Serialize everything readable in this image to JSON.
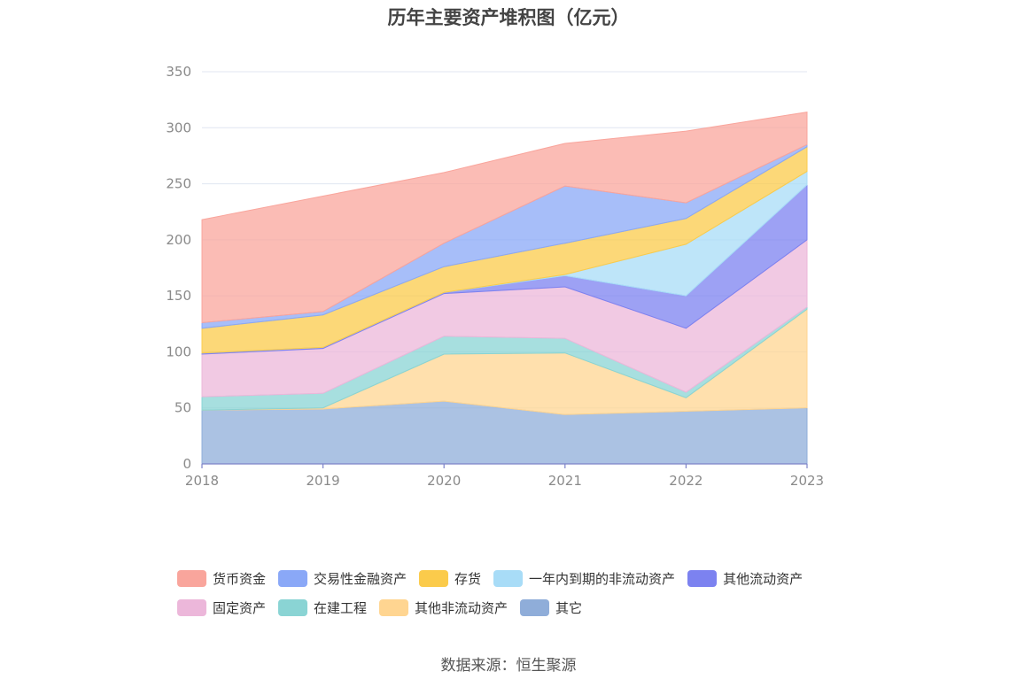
{
  "title": "历年主要资产堆积图（亿元）",
  "source": "数据来源：恒生聚源",
  "chart_data": {
    "type": "area",
    "stacked": true,
    "x": [
      "2018",
      "2019",
      "2020",
      "2021",
      "2022",
      "2023"
    ],
    "ylim": [
      0,
      350
    ],
    "yticks": [
      0,
      50,
      100,
      150,
      200,
      250,
      300,
      350
    ],
    "grid": true,
    "legend_position": "bottom",
    "series": [
      {
        "name": "其它",
        "color": "#8fadd9",
        "values": [
          48,
          49,
          56,
          44,
          47,
          50
        ]
      },
      {
        "name": "其他非流动资产",
        "color": "#ffd591",
        "values": [
          0,
          1,
          42,
          55,
          12,
          88
        ]
      },
      {
        "name": "在建工程",
        "color": "#8ad4d4",
        "values": [
          12,
          13,
          16,
          13,
          5,
          2
        ]
      },
      {
        "name": "固定资产",
        "color": "#ecb7da",
        "values": [
          38,
          40,
          38,
          46,
          57,
          60
        ]
      },
      {
        "name": "其他流动资产",
        "color": "#7c82f0",
        "values": [
          1,
          1,
          1,
          10,
          29,
          49
        ]
      },
      {
        "name": "一年内到期的非流动资产",
        "color": "#a8dcf7",
        "values": [
          0,
          0,
          0,
          1,
          46,
          12
        ]
      },
      {
        "name": "存货",
        "color": "#fbcb4b",
        "values": [
          22,
          29,
          23,
          28,
          23,
          22
        ]
      },
      {
        "name": "交易性金融资产",
        "color": "#8aa8f7",
        "values": [
          5,
          3,
          21,
          51,
          14,
          2
        ]
      },
      {
        "name": "货币资金",
        "color": "#f9a59c",
        "values": [
          92,
          103,
          63,
          38,
          64,
          29
        ]
      }
    ]
  },
  "legend": {
    "row1": [
      {
        "label": "货币资金",
        "color": "#f9a59c"
      },
      {
        "label": "交易性金融资产",
        "color": "#8aa8f7"
      },
      {
        "label": "存货",
        "color": "#fbcb4b"
      },
      {
        "label": "一年内到期的非流动资产",
        "color": "#a8dcf7"
      },
      {
        "label": "其他流动资产",
        "color": "#7c82f0"
      }
    ],
    "row2": [
      {
        "label": "固定资产",
        "color": "#ecb7da"
      },
      {
        "label": "在建工程",
        "color": "#8ad4d4"
      },
      {
        "label": "其他非流动资产",
        "color": "#ffd591"
      },
      {
        "label": "其它",
        "color": "#8fadd9"
      }
    ]
  }
}
